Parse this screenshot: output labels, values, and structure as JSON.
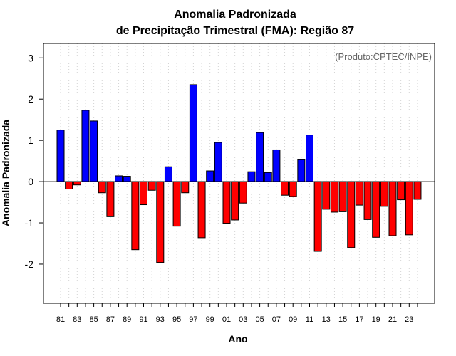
{
  "chart_data": {
    "type": "bar",
    "title": "Anomalia Padronizada",
    "subtitle": "de Precipitação Trimestral (FMA): Região 87",
    "xlabel": "Ano",
    "ylabel": "Anomalia Padronizada",
    "annotation": "(Produto:CPTEC/INPE)",
    "ylim": [
      -2.95,
      3.35
    ],
    "yticks": [
      -2,
      -1,
      0,
      1,
      2,
      3
    ],
    "ytick_labels": [
      "-2",
      "-1",
      "0",
      "1",
      "2",
      "3"
    ],
    "grid": "vertical dotted",
    "positive_color": "#0000ff",
    "negative_color": "#ff0000",
    "categories": [
      "1981",
      "1982",
      "1983",
      "1984",
      "1985",
      "1986",
      "1987",
      "1988",
      "1989",
      "1990",
      "1991",
      "1992",
      "1993",
      "1994",
      "1995",
      "1996",
      "1997",
      "1998",
      "1999",
      "2000",
      "2001",
      "2002",
      "2003",
      "2004",
      "2005",
      "2006",
      "2007",
      "2008",
      "2009",
      "2010",
      "2011",
      "2012",
      "2013",
      "2014",
      "2015",
      "2016",
      "2017",
      "2018",
      "2019",
      "2020",
      "2021",
      "2022",
      "2023",
      "2024"
    ],
    "xtick_labels": [
      "81",
      "83",
      "85",
      "87",
      "89",
      "91",
      "93",
      "95",
      "97",
      "99",
      "01",
      "03",
      "05",
      "07",
      "09",
      "11",
      "13",
      "15",
      "17",
      "19",
      "21",
      "23"
    ],
    "values": [
      1.25,
      -0.18,
      -0.08,
      1.73,
      1.47,
      -0.27,
      -0.85,
      0.14,
      0.13,
      -1.65,
      -0.56,
      -0.21,
      -1.96,
      0.36,
      -1.08,
      -0.27,
      2.35,
      -1.36,
      0.26,
      0.95,
      -1.01,
      -0.93,
      -0.52,
      0.24,
      1.19,
      0.22,
      0.77,
      -0.33,
      -0.36,
      0.53,
      1.13,
      -1.69,
      -0.67,
      -0.74,
      -0.73,
      -1.6,
      -0.57,
      -0.92,
      -1.35,
      -0.6,
      -1.31,
      -0.44,
      -1.29,
      -0.43
    ]
  }
}
